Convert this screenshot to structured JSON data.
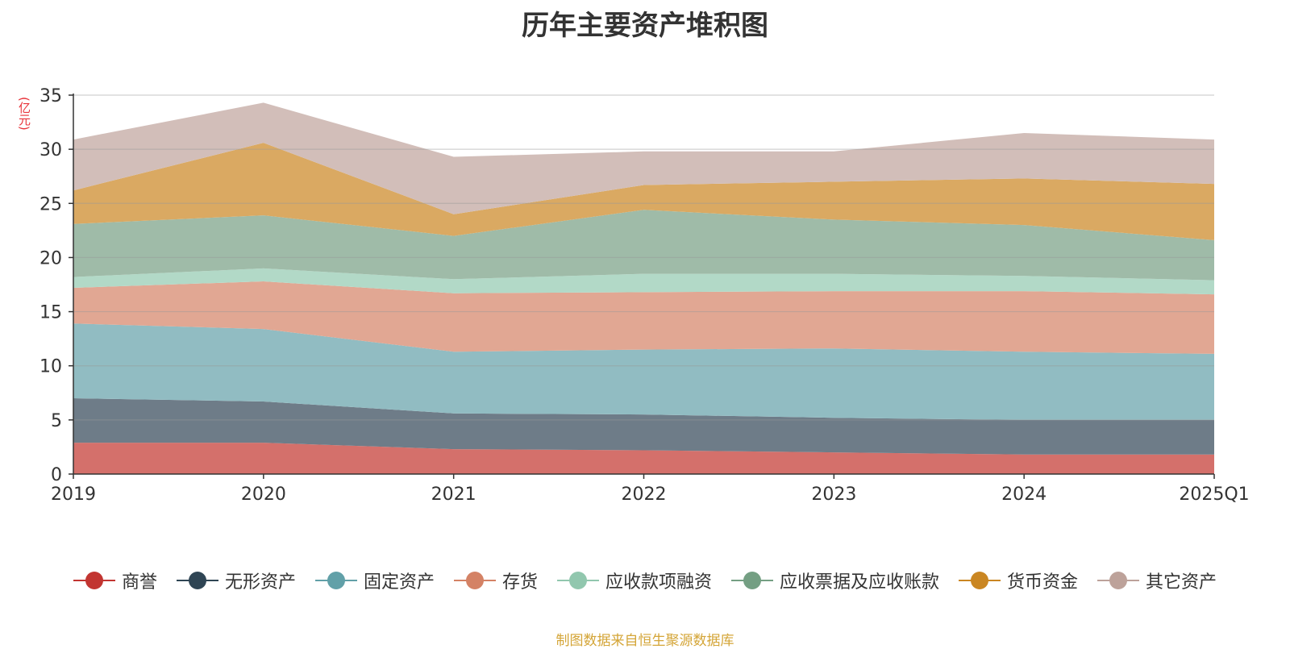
{
  "chart_data": {
    "type": "area",
    "stacked": true,
    "title": "历年主要资产堆积图",
    "y_unit": "(亿元)",
    "categories": [
      "2019",
      "2020",
      "2021",
      "2022",
      "2023",
      "2024",
      "2025Q1"
    ],
    "ylim": [
      0,
      35
    ],
    "yticks": [
      0,
      5,
      10,
      15,
      20,
      25,
      30,
      35
    ],
    "grid": true,
    "legend_position": "bottom",
    "series": [
      {
        "name": "商誉",
        "color": "#c23531",
        "fill": "#d4706b",
        "values": [
          2.9,
          2.9,
          2.3,
          2.2,
          2.0,
          1.8,
          1.8
        ]
      },
      {
        "name": "无形资产",
        "color": "#2f4554",
        "fill": "#6e7c88",
        "values": [
          4.1,
          3.8,
          3.3,
          3.3,
          3.2,
          3.2,
          3.2
        ]
      },
      {
        "name": "固定资产",
        "color": "#61a0a8",
        "fill": "#91bcc2",
        "values": [
          6.9,
          6.7,
          5.7,
          6.0,
          6.4,
          6.3,
          6.1
        ]
      },
      {
        "name": "存货",
        "color": "#d48265",
        "fill": "#e1a793",
        "values": [
          3.3,
          4.4,
          5.4,
          5.3,
          5.3,
          5.6,
          5.5
        ]
      },
      {
        "name": "应收款项融资",
        "color": "#91c7ae",
        "fill": "#b2d9c7",
        "values": [
          1.0,
          1.2,
          1.3,
          1.7,
          1.6,
          1.4,
          1.3
        ]
      },
      {
        "name": "应收票据及应收账款",
        "color": "#749f83",
        "fill": "#9fbba8",
        "values": [
          4.9,
          4.9,
          4.0,
          5.9,
          5.0,
          4.7,
          3.7
        ]
      },
      {
        "name": "货币资金",
        "color": "#ca8622",
        "fill": "#daa962",
        "values": [
          3.1,
          6.7,
          2.0,
          2.3,
          3.5,
          4.3,
          5.2
        ]
      },
      {
        "name": "其它资产",
        "color": "#bda29a",
        "fill": "#d2beb9",
        "values": [
          4.7,
          3.7,
          5.3,
          3.1,
          2.8,
          4.2,
          4.1
        ]
      }
    ],
    "footnote": "制图数据来自恒生聚源数据库"
  }
}
